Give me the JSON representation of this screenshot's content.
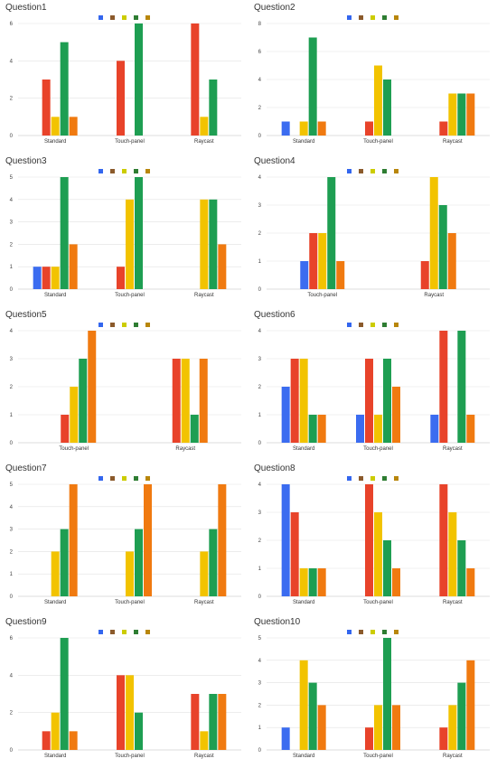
{
  "colors": [
    "#3366ee",
    "#8b5a2b",
    "#cccc00",
    "#2e7d32",
    "#b8860b"
  ],
  "bar_colors": [
    "#3b6cf0",
    "#e8432a",
    "#f2c300",
    "#1e9e52",
    "#f07a10"
  ],
  "chart_data": [
    {
      "type": "bar",
      "title": "Question1",
      "categories": [
        "Standard",
        "Touch-panel",
        "Raycast"
      ],
      "ylim": [
        0,
        6
      ],
      "yticks": [
        0,
        2,
        4,
        6
      ],
      "series": [
        {
          "values": [
            0,
            0,
            0
          ]
        },
        {
          "values": [
            3,
            4,
            6
          ]
        },
        {
          "values": [
            1,
            0,
            1
          ]
        },
        {
          "values": [
            5,
            6,
            3
          ]
        },
        {
          "values": [
            1,
            0,
            0
          ]
        }
      ]
    },
    {
      "type": "bar",
      "title": "Question2",
      "categories": [
        "Standard",
        "Touch-panel",
        "Raycast"
      ],
      "ylim": [
        0,
        8
      ],
      "yticks": [
        0,
        2,
        4,
        6,
        8
      ],
      "series": [
        {
          "values": [
            1,
            0,
            0
          ]
        },
        {
          "values": [
            0,
            1,
            1
          ]
        },
        {
          "values": [
            1,
            5,
            3
          ]
        },
        {
          "values": [
            7,
            4,
            3
          ]
        },
        {
          "values": [
            1,
            0,
            3
          ]
        }
      ]
    },
    {
      "type": "bar",
      "title": "Question3",
      "categories": [
        "Standard",
        "Touch-panel",
        "Raycast"
      ],
      "ylim": [
        0,
        5
      ],
      "yticks": [
        0,
        1,
        2,
        3,
        4,
        5
      ],
      "series": [
        {
          "values": [
            1,
            0,
            0
          ]
        },
        {
          "values": [
            1,
            1,
            0
          ]
        },
        {
          "values": [
            1,
            4,
            4
          ]
        },
        {
          "values": [
            5,
            5,
            4
          ]
        },
        {
          "values": [
            2,
            0,
            2
          ]
        }
      ]
    },
    {
      "type": "bar",
      "title": "Question4",
      "categories": [
        "Touch-panel",
        "Raycast"
      ],
      "ylim": [
        0,
        4
      ],
      "yticks": [
        0,
        1,
        2,
        3,
        4
      ],
      "series": [
        {
          "values": [
            1,
            0
          ]
        },
        {
          "values": [
            2,
            1
          ]
        },
        {
          "values": [
            2,
            4
          ]
        },
        {
          "values": [
            4,
            3
          ]
        },
        {
          "values": [
            1,
            2
          ]
        }
      ]
    },
    {
      "type": "bar",
      "title": "Question5",
      "categories": [
        "Touch-panel",
        "Raycast"
      ],
      "ylim": [
        0,
        4
      ],
      "yticks": [
        0,
        1,
        2,
        3,
        4
      ],
      "series": [
        {
          "values": [
            0,
            0
          ]
        },
        {
          "values": [
            1,
            3
          ]
        },
        {
          "values": [
            2,
            3
          ]
        },
        {
          "values": [
            3,
            1
          ]
        },
        {
          "values": [
            4,
            3
          ]
        }
      ]
    },
    {
      "type": "bar",
      "title": "Question6",
      "categories": [
        "Standard",
        "Touch-panel",
        "Raycast"
      ],
      "ylim": [
        0,
        4
      ],
      "yticks": [
        0,
        1,
        2,
        3,
        4
      ],
      "series": [
        {
          "values": [
            2,
            1,
            1
          ]
        },
        {
          "values": [
            3,
            3,
            4
          ]
        },
        {
          "values": [
            3,
            1,
            0
          ]
        },
        {
          "values": [
            1,
            3,
            4
          ]
        },
        {
          "values": [
            1,
            2,
            1
          ]
        }
      ]
    },
    {
      "type": "bar",
      "title": "Question7",
      "categories": [
        "Standard",
        "Touch-panel",
        "Raycast"
      ],
      "ylim": [
        0,
        5
      ],
      "yticks": [
        0,
        1,
        2,
        3,
        4,
        5
      ],
      "series": [
        {
          "values": [
            0,
            0,
            0
          ]
        },
        {
          "values": [
            0,
            0,
            0
          ]
        },
        {
          "values": [
            2,
            2,
            2
          ]
        },
        {
          "values": [
            3,
            3,
            3
          ]
        },
        {
          "values": [
            5,
            5,
            5
          ]
        }
      ]
    },
    {
      "type": "bar",
      "title": "Question8",
      "categories": [
        "Standard",
        "Touch-panel",
        "Raycast"
      ],
      "ylim": [
        0,
        4
      ],
      "yticks": [
        0,
        1,
        2,
        3,
        4
      ],
      "series": [
        {
          "values": [
            4,
            0,
            0
          ]
        },
        {
          "values": [
            3,
            4,
            4
          ]
        },
        {
          "values": [
            1,
            3,
            3
          ]
        },
        {
          "values": [
            1,
            2,
            2
          ]
        },
        {
          "values": [
            1,
            1,
            1
          ]
        }
      ]
    },
    {
      "type": "bar",
      "title": "Question9",
      "categories": [
        "Standard",
        "Touch-panel",
        "Raycast"
      ],
      "ylim": [
        0,
        6
      ],
      "yticks": [
        0,
        2,
        4,
        6
      ],
      "series": [
        {
          "values": [
            0,
            0,
            0
          ]
        },
        {
          "values": [
            1,
            4,
            3
          ]
        },
        {
          "values": [
            2,
            4,
            1
          ]
        },
        {
          "values": [
            6,
            2,
            3
          ]
        },
        {
          "values": [
            1,
            0,
            3
          ]
        }
      ]
    },
    {
      "type": "bar",
      "title": "Question10",
      "categories": [
        "Standard",
        "Touch-panel",
        "Raycast"
      ],
      "ylim": [
        0,
        5
      ],
      "yticks": [
        0,
        1,
        2,
        3,
        4,
        5
      ],
      "series": [
        {
          "values": [
            1,
            0,
            0
          ]
        },
        {
          "values": [
            0,
            1,
            1
          ]
        },
        {
          "values": [
            4,
            2,
            2
          ]
        },
        {
          "values": [
            3,
            5,
            3
          ]
        },
        {
          "values": [
            2,
            2,
            4
          ]
        }
      ]
    }
  ]
}
